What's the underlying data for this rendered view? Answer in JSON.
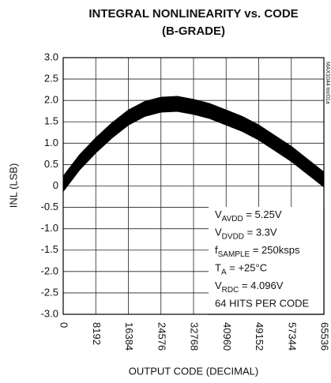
{
  "chart_data": {
    "type": "line",
    "title": "INTEGRAL NONLINEARITY vs. CODE",
    "subtitle": "(B-GRADE)",
    "x_label": "OUTPUT CODE (DECIMAL)",
    "y_label": "INL (LSB)",
    "side_note": "MAX1044 toc01a",
    "x": [
      0,
      4096,
      8192,
      12288,
      16384,
      20480,
      24576,
      28672,
      32768,
      36864,
      40960,
      45056,
      49152,
      53248,
      57344,
      61440,
      65536
    ],
    "series": [
      {
        "color": "#000000",
        "values": [
          0.22,
          0.72,
          1.12,
          1.47,
          1.77,
          1.97,
          2.07,
          2.09,
          2.02,
          1.92,
          1.77,
          1.62,
          1.42,
          1.17,
          0.92,
          0.62,
          0.32
        ]
      },
      {
        "color": "#000000",
        "values": [
          -0.12,
          0.38,
          0.78,
          1.13,
          1.43,
          1.63,
          1.73,
          1.75,
          1.68,
          1.58,
          1.43,
          1.28,
          1.08,
          0.83,
          0.58,
          0.28,
          -0.02
        ]
      }
    ],
    "xlim": [
      0,
      65536
    ],
    "xticks": [
      0,
      8192,
      16384,
      24576,
      32768,
      40960,
      49152,
      57344,
      65536
    ],
    "ylim": [
      -3,
      3
    ],
    "yticks": [
      {
        "value": 3,
        "label": "3.0"
      },
      2.5,
      {
        "value": 2,
        "label": "2.0"
      },
      1.5,
      {
        "value": 1,
        "label": "1.0"
      },
      0.5,
      0,
      -0.5,
      {
        "value": -1,
        "label": "-1.0"
      },
      -1.5,
      {
        "value": -2,
        "label": "-2.0"
      },
      -2.5,
      {
        "value": -3,
        "label": "-3.0"
      }
    ],
    "grid": true,
    "annotations": [
      {
        "text": "V",
        "sub": "AVDD",
        "tail": " = 5.25V"
      },
      {
        "text": "V",
        "sub": "DVDD",
        "tail": " = 3.3V"
      },
      {
        "text": "f",
        "sub": "SAMPLE",
        "tail": " = 250ksps"
      },
      {
        "text": "T",
        "sub": "A",
        "tail": " = +25°C"
      },
      {
        "text": "V",
        "sub": "RDC",
        "tail": " = 4.096V"
      },
      {
        "text": "64 HITS PER CODE"
      }
    ]
  }
}
